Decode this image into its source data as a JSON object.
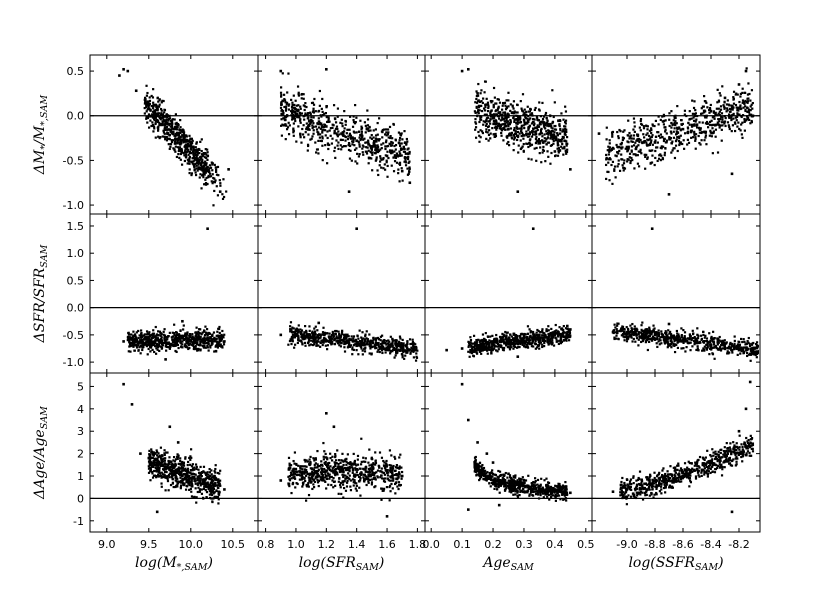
{
  "chart_data": {
    "type": "scatter",
    "layout": "3x4 grid of scatter panels, shared x per column, shared y per row",
    "zero_line": true,
    "grid": false,
    "columns": [
      {
        "xlabel": "log(M*,SAM)",
        "xlabel_parts": {
          "main": "log(M",
          "sub": "*,SAM",
          "close": ")"
        },
        "xlim": [
          8.8,
          10.8
        ],
        "xticks": [
          "9.0",
          "9.5",
          "10.0",
          "10.5"
        ],
        "xtick_values": [
          9.0,
          9.5,
          10.0,
          10.5
        ]
      },
      {
        "xlabel": "log(SFR_SAM)",
        "xlabel_parts": {
          "main": "log(SFR",
          "sub": "SAM",
          "close": ")"
        },
        "xlim": [
          0.75,
          1.85
        ],
        "xticks": [
          "0.8",
          "1.0",
          "1.2",
          "1.4",
          "1.6",
          "1.8"
        ],
        "xtick_values": [
          0.8,
          1.0,
          1.2,
          1.4,
          1.6,
          1.8
        ]
      },
      {
        "xlabel": "Age_SAM",
        "xlabel_parts": {
          "main": "Age",
          "sub": "SAM",
          "close": ""
        },
        "xlim": [
          -0.02,
          0.52
        ],
        "xticks": [
          "0.0",
          "0.1",
          "0.2",
          "0.3",
          "0.4",
          "0.5"
        ],
        "xtick_values": [
          0.0,
          0.1,
          0.2,
          0.3,
          0.4,
          0.5
        ]
      },
      {
        "xlabel": "log(SSFR_SAM)",
        "xlabel_parts": {
          "main": "log(SSFR",
          "sub": "SAM",
          "close": ")"
        },
        "xlim": [
          -9.25,
          -8.05
        ],
        "xticks": [
          "-9.0",
          "-8.8",
          "-8.6",
          "-8.4",
          "-8.2"
        ],
        "xtick_values": [
          -9.0,
          -8.8,
          -8.6,
          -8.4,
          -8.2
        ]
      }
    ],
    "rows": [
      {
        "ylabel": "ΔM*/M*,SAM",
        "ylabel_parts": [
          [
            "ΔM",
            ""
          ],
          [
            "*",
            "sub"
          ],
          [
            "/M",
            ""
          ],
          [
            "*,SAM",
            "sub"
          ]
        ],
        "ylim": [
          -1.1,
          0.68
        ],
        "yticks": [
          "0.5",
          "0.0",
          "-0.5",
          "-1.0"
        ],
        "ytick_values": [
          0.5,
          0.0,
          -0.5,
          -1.0
        ]
      },
      {
        "ylabel": "ΔSFR/SFR_SAM",
        "ylabel_parts": [
          [
            "ΔSFR/SFR",
            ""
          ],
          [
            "SAM",
            "sub"
          ]
        ],
        "ylim": [
          -1.2,
          1.72
        ],
        "yticks": [
          "1.5",
          "1.0",
          "0.5",
          "0.0",
          "-0.5",
          "-1.0"
        ],
        "ytick_values": [
          1.5,
          1.0,
          0.5,
          0.0,
          -0.5,
          -1.0
        ]
      },
      {
        "ylabel": "ΔAge/Age_SAM",
        "ylabel_parts": [
          [
            "ΔAge/Age",
            ""
          ],
          [
            "SAM",
            "sub"
          ]
        ],
        "ylim": [
          -1.5,
          5.6
        ],
        "yticks": [
          "5",
          "4",
          "3",
          "2",
          "1",
          "0",
          "-1"
        ],
        "ytick_values": [
          5,
          4,
          3,
          2,
          1,
          0,
          -1
        ]
      }
    ],
    "panels": [
      {
        "row": 0,
        "col": 0,
        "trend": "negative",
        "points": [
          [
            9.15,
            0.45
          ],
          [
            9.25,
            0.5
          ],
          [
            9.35,
            0.28
          ],
          [
            9.5,
            0.12
          ],
          [
            9.6,
            0.0
          ],
          [
            9.7,
            -0.08
          ],
          [
            9.8,
            -0.15
          ],
          [
            9.9,
            -0.22
          ],
          [
            10.0,
            -0.3
          ],
          [
            10.1,
            -0.38
          ],
          [
            10.2,
            -0.45
          ],
          [
            10.3,
            -0.58
          ],
          [
            10.35,
            -0.85
          ],
          [
            9.2,
            0.52
          ],
          [
            10.45,
            -0.6
          ]
        ]
      },
      {
        "row": 0,
        "col": 1,
        "trend": "negative",
        "points": [
          [
            0.9,
            0.5
          ],
          [
            1.0,
            0.0
          ],
          [
            1.1,
            -0.05
          ],
          [
            1.2,
            -0.12
          ],
          [
            1.3,
            -0.2
          ],
          [
            1.4,
            -0.28
          ],
          [
            1.5,
            -0.35
          ],
          [
            1.6,
            -0.45
          ],
          [
            1.7,
            -0.62
          ],
          [
            1.75,
            -0.75
          ],
          [
            1.2,
            0.52
          ],
          [
            1.35,
            -0.85
          ]
        ]
      },
      {
        "row": 0,
        "col": 2,
        "trend": "negative",
        "points": [
          [
            0.1,
            0.5
          ],
          [
            0.15,
            0.25
          ],
          [
            0.2,
            0.0
          ],
          [
            0.25,
            -0.15
          ],
          [
            0.3,
            -0.22
          ],
          [
            0.35,
            -0.3
          ],
          [
            0.4,
            -0.4
          ],
          [
            0.45,
            -0.6
          ],
          [
            0.12,
            0.52
          ],
          [
            0.28,
            -0.85
          ]
        ]
      },
      {
        "row": 0,
        "col": 3,
        "trend": "positive",
        "points": [
          [
            -9.2,
            -0.2
          ],
          [
            -9.0,
            -0.35
          ],
          [
            -8.8,
            -0.3
          ],
          [
            -8.6,
            -0.15
          ],
          [
            -8.5,
            -0.1
          ],
          [
            -8.4,
            0.05
          ],
          [
            -8.3,
            0.2
          ],
          [
            -8.2,
            0.35
          ],
          [
            -8.15,
            0.5
          ],
          [
            -8.7,
            -0.88
          ],
          [
            -8.25,
            -0.65
          ],
          [
            -8.1,
            0.0
          ]
        ]
      },
      {
        "row": 1,
        "col": 0,
        "trend": "flat",
        "outlier": [
          10.2,
          1.45
        ],
        "points": [
          [
            9.2,
            -0.62
          ],
          [
            9.4,
            -0.6
          ],
          [
            9.6,
            -0.6
          ],
          [
            9.8,
            -0.62
          ],
          [
            10.0,
            -0.6
          ],
          [
            10.2,
            -0.55
          ],
          [
            10.4,
            -0.62
          ],
          [
            9.9,
            -0.25
          ],
          [
            9.7,
            -0.95
          ],
          [
            10.3,
            -0.8
          ]
        ]
      },
      {
        "row": 1,
        "col": 1,
        "trend": "slightly negative",
        "outlier": [
          1.4,
          1.45
        ],
        "points": [
          [
            0.9,
            -0.5
          ],
          [
            1.0,
            -0.5
          ],
          [
            1.1,
            -0.55
          ],
          [
            1.2,
            -0.6
          ],
          [
            1.3,
            -0.65
          ],
          [
            1.4,
            -0.7
          ],
          [
            1.5,
            -0.72
          ],
          [
            1.6,
            -0.75
          ],
          [
            1.7,
            -0.75
          ],
          [
            1.15,
            -0.28
          ]
        ]
      },
      {
        "row": 1,
        "col": 2,
        "trend": "slightly positive",
        "outlier": [
          0.33,
          1.45
        ],
        "points": [
          [
            0.1,
            -0.75
          ],
          [
            0.15,
            -0.7
          ],
          [
            0.2,
            -0.65
          ],
          [
            0.25,
            -0.6
          ],
          [
            0.3,
            -0.55
          ],
          [
            0.35,
            -0.5
          ],
          [
            0.4,
            -0.45
          ],
          [
            0.45,
            -0.4
          ],
          [
            0.05,
            -0.78
          ],
          [
            0.28,
            -0.9
          ]
        ]
      },
      {
        "row": 1,
        "col": 3,
        "trend": "slightly negative",
        "outlier": [
          -8.82,
          1.45
        ],
        "points": [
          [
            -9.1,
            -0.45
          ],
          [
            -9.0,
            -0.45
          ],
          [
            -8.8,
            -0.5
          ],
          [
            -8.6,
            -0.6
          ],
          [
            -8.5,
            -0.65
          ],
          [
            -8.4,
            -0.72
          ],
          [
            -8.3,
            -0.75
          ],
          [
            -8.2,
            -0.78
          ],
          [
            -8.1,
            -0.8
          ],
          [
            -8.7,
            -0.3
          ]
        ]
      },
      {
        "row": 2,
        "col": 0,
        "trend": "negative",
        "points": [
          [
            9.2,
            5.1
          ],
          [
            9.3,
            4.2
          ],
          [
            9.4,
            2.0
          ],
          [
            9.5,
            1.8
          ],
          [
            9.6,
            1.5
          ],
          [
            9.7,
            1.3
          ],
          [
            9.8,
            1.1
          ],
          [
            9.9,
            1.0
          ],
          [
            10.0,
            0.9
          ],
          [
            10.1,
            0.8
          ],
          [
            10.2,
            0.7
          ],
          [
            10.4,
            0.4
          ],
          [
            9.6,
            -0.6
          ],
          [
            9.75,
            3.2
          ],
          [
            9.85,
            2.5
          ]
        ]
      },
      {
        "row": 2,
        "col": 1,
        "trend": "flat",
        "points": [
          [
            0.9,
            0.8
          ],
          [
            1.0,
            1.2
          ],
          [
            1.1,
            1.1
          ],
          [
            1.2,
            1.0
          ],
          [
            1.3,
            1.2
          ],
          [
            1.4,
            1.3
          ],
          [
            1.5,
            1.5
          ],
          [
            1.6,
            1.2
          ],
          [
            1.7,
            1.0
          ],
          [
            1.2,
            3.8
          ],
          [
            1.25,
            3.2
          ],
          [
            1.6,
            -0.8
          ]
        ]
      },
      {
        "row": 2,
        "col": 2,
        "trend": "negative curved",
        "points": [
          [
            0.1,
            5.1
          ],
          [
            0.12,
            3.5
          ],
          [
            0.15,
            2.5
          ],
          [
            0.18,
            2.0
          ],
          [
            0.2,
            1.6
          ],
          [
            0.25,
            1.1
          ],
          [
            0.3,
            0.8
          ],
          [
            0.35,
            0.55
          ],
          [
            0.4,
            0.4
          ],
          [
            0.45,
            0.25
          ],
          [
            0.22,
            -0.3
          ],
          [
            0.12,
            -0.5
          ]
        ]
      },
      {
        "row": 2,
        "col": 3,
        "trend": "positive curved",
        "points": [
          [
            -9.1,
            0.3
          ],
          [
            -9.0,
            0.4
          ],
          [
            -8.9,
            0.6
          ],
          [
            -8.8,
            0.8
          ],
          [
            -8.7,
            0.9
          ],
          [
            -8.6,
            1.0
          ],
          [
            -8.5,
            1.3
          ],
          [
            -8.4,
            1.6
          ],
          [
            -8.3,
            2.0
          ],
          [
            -8.2,
            3.0
          ],
          [
            -8.15,
            4.0
          ],
          [
            -8.12,
            5.2
          ],
          [
            -8.25,
            -0.6
          ]
        ]
      }
    ]
  }
}
